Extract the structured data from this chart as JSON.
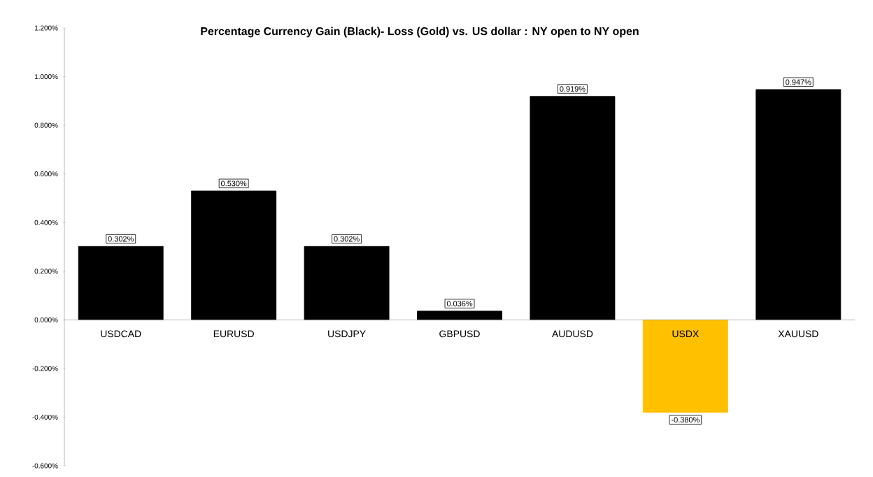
{
  "chart_data": {
    "type": "bar",
    "title": "Percentage Currency Gain (Black)- Loss (Gold) vs. US dollar : NY open to NY open",
    "categories": [
      "USDCAD",
      "EURUSD",
      "USDJPY",
      "GBPUSD",
      "AUDUSD",
      "USDX",
      "XAUUSD"
    ],
    "values": [
      0.302,
      0.53,
      0.302,
      0.036,
      0.919,
      -0.38,
      0.947
    ],
    "value_labels": [
      "0.302%",
      "0.530%",
      "0.302%",
      "0.036%",
      "0.919%",
      "-0.380%",
      "0.947%"
    ],
    "colors": [
      "#000000",
      "#000000",
      "#000000",
      "#000000",
      "#000000",
      "#ffc000",
      "#000000"
    ],
    "ylim": [
      -0.6,
      1.2
    ],
    "yticks": [
      {
        "value": -0.6,
        "label": "-0.600%"
      },
      {
        "value": -0.4,
        "label": "-0.400%"
      },
      {
        "value": -0.2,
        "label": "-0.200%"
      },
      {
        "value": 0,
        "label": "0.000%"
      },
      {
        "value": 0.2,
        "label": "0.200%"
      },
      {
        "value": 0.4,
        "label": "0.400%"
      },
      {
        "value": 0.6,
        "label": "0.600%"
      },
      {
        "value": 0.8,
        "label": "0.800%"
      },
      {
        "value": 1.0,
        "label": "1.000%"
      },
      {
        "value": 1.2,
        "label": "1.200%"
      }
    ],
    "grid": false
  }
}
